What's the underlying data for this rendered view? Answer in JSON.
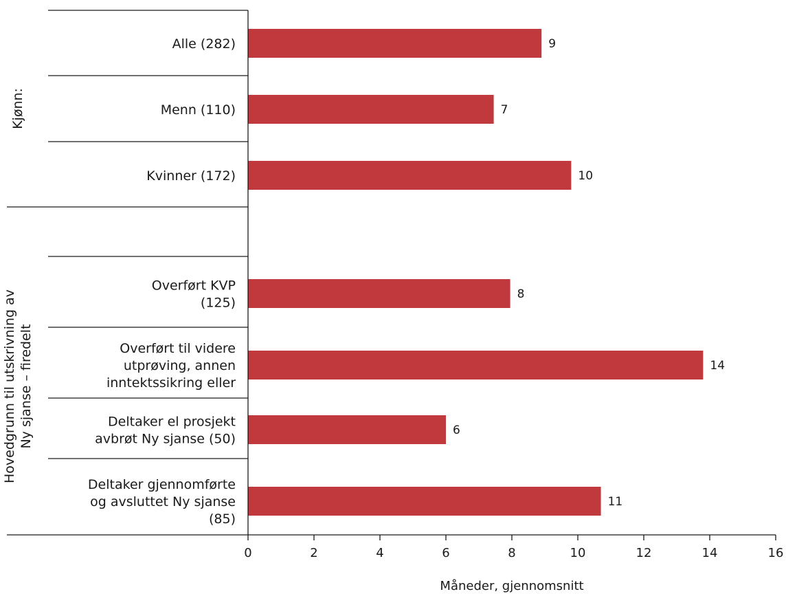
{
  "chart_data": {
    "type": "bar",
    "orientation": "horizontal",
    "xlabel": "Måneder, gjennomsnitt",
    "xlim": [
      0,
      16
    ],
    "xticks": [
      0,
      2,
      4,
      6,
      8,
      10,
      12,
      14,
      16
    ],
    "bar_color": "#c0393d",
    "grid": false,
    "groups": [
      {
        "label_lines": [
          "Kjønn:"
        ]
      },
      {
        "label_lines": [
          "Hovedgrunn til utskrivning av",
          "Ny sjanse – firedelt"
        ]
      }
    ],
    "categories": [
      {
        "label_lines": [
          "Alle (282)"
        ],
        "value": 8.9,
        "data_label": "9"
      },
      {
        "label_lines": [
          "Menn (110)"
        ],
        "value": 7.45,
        "data_label": "7"
      },
      {
        "label_lines": [
          "Kvinner (172)"
        ],
        "value": 9.8,
        "data_label": "10"
      },
      {
        "label_lines": [
          "Overført KVP",
          "(125)"
        ],
        "value": 7.95,
        "data_label": "8"
      },
      {
        "label_lines": [
          "Overført til videre",
          "utprøving, annen",
          "inntektssikring eller"
        ],
        "value": 13.8,
        "data_label": "14"
      },
      {
        "label_lines": [
          "Deltaker el prosjekt",
          "avbrøt Ny sjanse (50)"
        ],
        "value": 6.0,
        "data_label": "6"
      },
      {
        "label_lines": [
          "Deltaker gjennomførte",
          "og avsluttet Ny sjanse",
          "(85)"
        ],
        "value": 10.7,
        "data_label": "11"
      }
    ]
  }
}
